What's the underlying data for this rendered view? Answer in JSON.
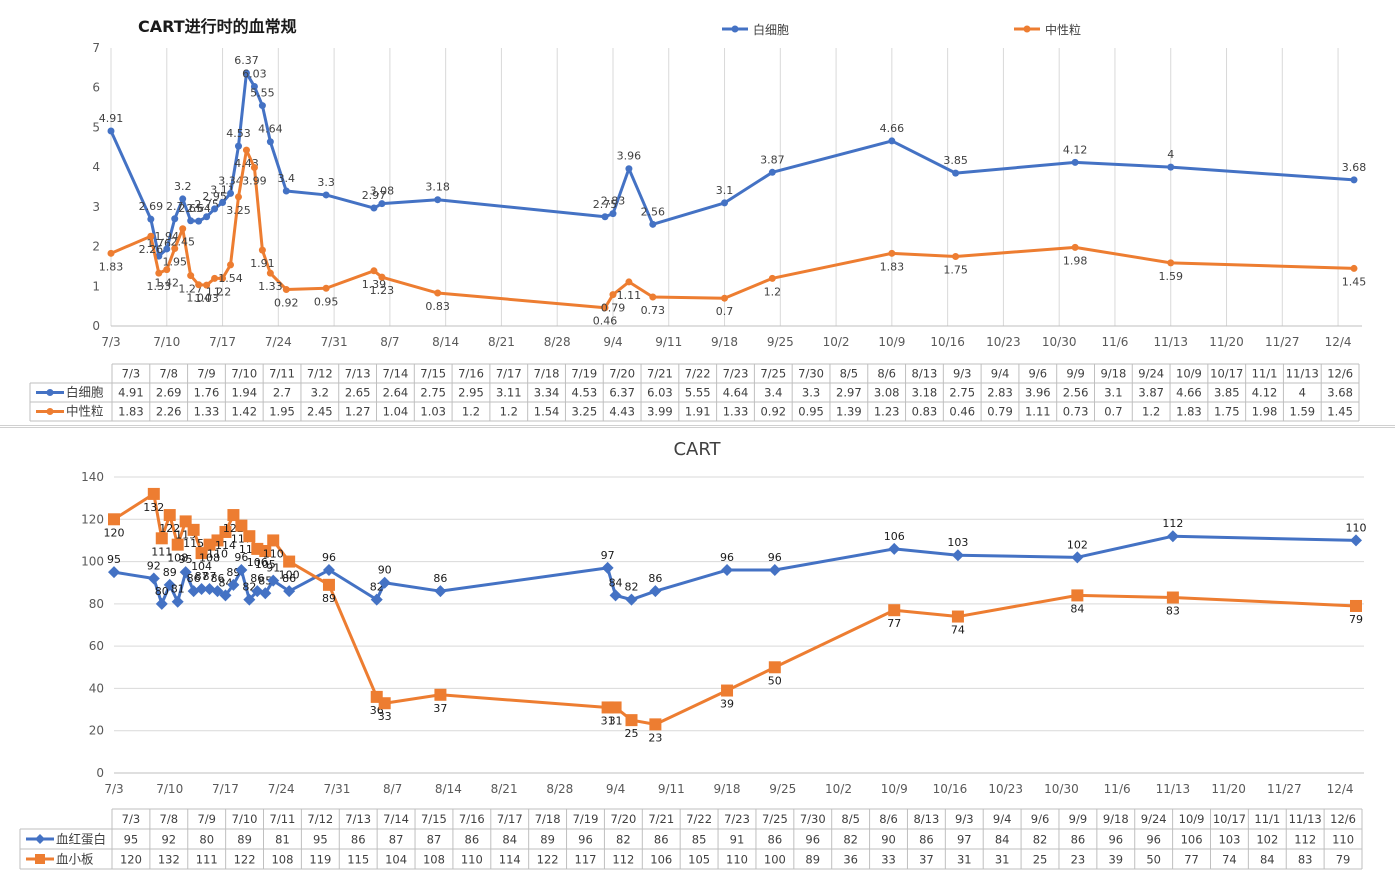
{
  "chart_data": [
    {
      "type": "line",
      "title": "CART进行时的血常规",
      "legend_position": "top-right",
      "grid": true,
      "ylim": [
        0,
        7
      ],
      "yticks": [
        0,
        1,
        2,
        3,
        4,
        5,
        6,
        7
      ],
      "axis_labels": [
        "7/3",
        "7/10",
        "7/17",
        "7/24",
        "7/31",
        "8/7",
        "8/14",
        "8/21",
        "8/28",
        "9/4",
        "9/11",
        "9/18",
        "9/25",
        "10/2",
        "10/9",
        "10/16",
        "10/23",
        "10/30",
        "11/6",
        "11/13",
        "11/20",
        "11/27",
        "12/4"
      ],
      "categories": [
        "7/3",
        "7/8",
        "7/9",
        "7/10",
        "7/11",
        "7/12",
        "7/13",
        "7/14",
        "7/15",
        "7/16",
        "7/17",
        "7/18",
        "7/19",
        "7/20",
        "7/21",
        "7/22",
        "7/23",
        "7/25",
        "7/30",
        "8/5",
        "8/6",
        "8/13",
        "9/3",
        "9/4",
        "9/6",
        "9/9",
        "9/18",
        "9/24",
        "10/9",
        "10/17",
        "11/1",
        "11/13",
        "12/6"
      ],
      "series": [
        {
          "name": "白细胞",
          "color": "#4472c4",
          "marker": "circle",
          "values": [
            4.91,
            2.69,
            1.76,
            1.94,
            2.7,
            3.2,
            2.65,
            2.64,
            2.75,
            2.95,
            3.11,
            3.34,
            4.53,
            6.37,
            6.03,
            5.55,
            4.64,
            3.4,
            3.3,
            2.97,
            3.08,
            3.18,
            2.75,
            2.83,
            3.96,
            2.56,
            3.1,
            3.87,
            4.66,
            3.85,
            4.12,
            4,
            3.68
          ]
        },
        {
          "name": "中性粒",
          "color": "#ed7d31",
          "marker": "circle",
          "values": [
            1.83,
            2.26,
            1.33,
            1.42,
            1.95,
            2.45,
            1.27,
            1.04,
            1.03,
            1.2,
            1.2,
            1.54,
            3.25,
            4.43,
            3.99,
            1.91,
            1.33,
            0.92,
            0.95,
            1.39,
            1.23,
            0.83,
            0.46,
            0.79,
            1.11,
            0.73,
            0.7,
            1.2,
            1.83,
            1.75,
            1.98,
            1.59,
            1.45
          ]
        }
      ]
    },
    {
      "type": "line",
      "title": "CART",
      "grid": true,
      "ylim": [
        0,
        140
      ],
      "yticks": [
        0,
        20,
        40,
        60,
        80,
        100,
        120,
        140
      ],
      "axis_labels": [
        "7/3",
        "7/10",
        "7/17",
        "7/24",
        "7/31",
        "8/7",
        "8/14",
        "8/21",
        "8/28",
        "9/4",
        "9/11",
        "9/18",
        "9/25",
        "10/2",
        "10/9",
        "10/16",
        "10/23",
        "10/30",
        "11/6",
        "11/13",
        "11/20",
        "11/27",
        "12/4"
      ],
      "categories": [
        "7/3",
        "7/8",
        "7/9",
        "7/10",
        "7/11",
        "7/12",
        "7/13",
        "7/14",
        "7/15",
        "7/16",
        "7/17",
        "7/18",
        "7/19",
        "7/20",
        "7/21",
        "7/22",
        "7/23",
        "7/25",
        "7/30",
        "8/5",
        "8/6",
        "8/13",
        "9/3",
        "9/4",
        "9/6",
        "9/9",
        "9/18",
        "9/24",
        "10/9",
        "10/17",
        "11/1",
        "11/13",
        "12/6"
      ],
      "series": [
        {
          "name": "血红蛋白",
          "color": "#4472c4",
          "marker": "diamond",
          "values": [
            95,
            92,
            80,
            89,
            81,
            95,
            86,
            87,
            87,
            86,
            84,
            89,
            96,
            82,
            86,
            85,
            91,
            86,
            96,
            82,
            90,
            86,
            97,
            84,
            82,
            86,
            96,
            96,
            106,
            103,
            102,
            112,
            110
          ]
        },
        {
          "name": "血小板",
          "color": "#ed7d31",
          "marker": "square",
          "values": [
            120,
            132,
            111,
            122,
            108,
            119,
            115,
            104,
            108,
            110,
            114,
            122,
            117,
            112,
            106,
            105,
            110,
            100,
            89,
            36,
            33,
            37,
            31,
            31,
            25,
            23,
            39,
            50,
            77,
            74,
            84,
            83,
            79
          ]
        }
      ]
    }
  ]
}
